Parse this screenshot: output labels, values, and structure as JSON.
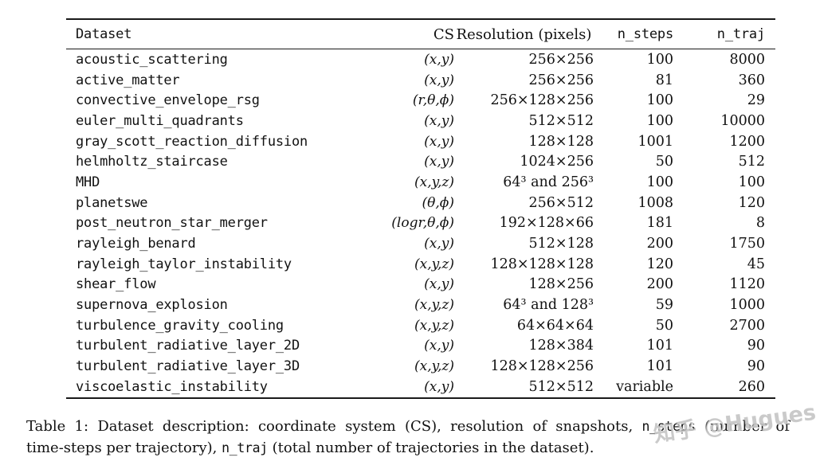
{
  "table": {
    "columns": [
      {
        "key": "dataset",
        "label": "Dataset"
      },
      {
        "key": "cs",
        "label": "CS"
      },
      {
        "key": "resolution",
        "label": "Resolution (pixels)"
      },
      {
        "key": "n_steps",
        "label": "n_steps"
      },
      {
        "key": "n_traj",
        "label": "n_traj"
      }
    ],
    "rows": [
      {
        "dataset": "acoustic_scattering",
        "cs": "(x,y)",
        "resolution": "256×256",
        "n_steps": "100",
        "n_traj": "8000"
      },
      {
        "dataset": "active_matter",
        "cs": "(x,y)",
        "resolution": "256×256",
        "n_steps": "81",
        "n_traj": "360"
      },
      {
        "dataset": "convective_envelope_rsg",
        "cs": "(r,θ,ϕ)",
        "resolution": "256×128×256",
        "n_steps": "100",
        "n_traj": "29"
      },
      {
        "dataset": "euler_multi_quadrants",
        "cs": "(x,y)",
        "resolution": "512×512",
        "n_steps": "100",
        "n_traj": "10000"
      },
      {
        "dataset": "gray_scott_reaction_diffusion",
        "cs": "(x,y)",
        "resolution": "128×128",
        "n_steps": "1001",
        "n_traj": "1200"
      },
      {
        "dataset": "helmholtz_staircase",
        "cs": "(x,y)",
        "resolution": "1024×256",
        "n_steps": "50",
        "n_traj": "512"
      },
      {
        "dataset": "MHD",
        "cs": "(x,y,z)",
        "resolution": "64³ and 256³",
        "n_steps": "100",
        "n_traj": "100"
      },
      {
        "dataset": "planetswe",
        "cs": "(θ,ϕ)",
        "resolution": "256×512",
        "n_steps": "1008",
        "n_traj": "120"
      },
      {
        "dataset": "post_neutron_star_merger",
        "cs": "(logr,θ,ϕ)",
        "resolution": "192×128×66",
        "n_steps": "181",
        "n_traj": "8"
      },
      {
        "dataset": "rayleigh_benard",
        "cs": "(x,y)",
        "resolution": "512×128",
        "n_steps": "200",
        "n_traj": "1750"
      },
      {
        "dataset": "rayleigh_taylor_instability",
        "cs": "(x,y,z)",
        "resolution": "128×128×128",
        "n_steps": "120",
        "n_traj": "45"
      },
      {
        "dataset": "shear_flow",
        "cs": "(x,y)",
        "resolution": "128×256",
        "n_steps": "200",
        "n_traj": "1120"
      },
      {
        "dataset": "supernova_explosion",
        "cs": "(x,y,z)",
        "resolution": "64³ and 128³",
        "n_steps": "59",
        "n_traj": "1000"
      },
      {
        "dataset": "turbulence_gravity_cooling",
        "cs": "(x,y,z)",
        "resolution": "64×64×64",
        "n_steps": "50",
        "n_traj": "2700"
      },
      {
        "dataset": "turbulent_radiative_layer_2D",
        "cs": "(x,y)",
        "resolution": "128×384",
        "n_steps": "101",
        "n_traj": "90"
      },
      {
        "dataset": "turbulent_radiative_layer_3D",
        "cs": "(x,y,z)",
        "resolution": "128×128×256",
        "n_steps": "101",
        "n_traj": "90"
      },
      {
        "dataset": "viscoelastic_instability",
        "cs": "(x,y)",
        "resolution": "512×512",
        "n_steps": "variable",
        "n_traj": "260"
      }
    ]
  },
  "caption": {
    "lines": [
      {
        "segments": [
          {
            "text": "Table 1: Dataset description: coordinate system (CS), resolution of snapshots, ",
            "font": "serif"
          },
          {
            "text": "n_steps",
            "font": "mono"
          },
          {
            "text": " (number of",
            "font": "serif"
          }
        ]
      },
      {
        "segments": [
          {
            "text": "time-steps per trajectory), ",
            "font": "serif"
          },
          {
            "text": "n_traj",
            "font": "mono"
          },
          {
            "text": " (total number of trajectories in the dataset).",
            "font": "serif"
          }
        ]
      }
    ]
  },
  "watermark": {
    "text": "知乎 @Hugues"
  }
}
